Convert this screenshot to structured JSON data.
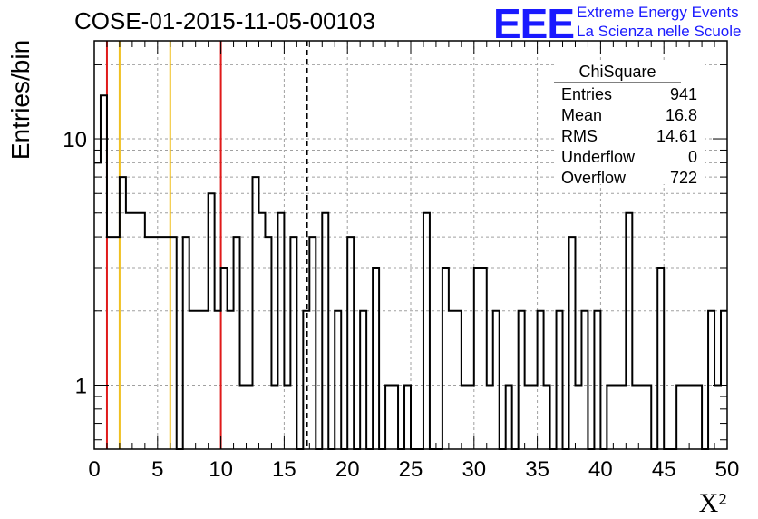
{
  "title": "COSE-01-2015-11-05-00103",
  "logo": {
    "acronym": "EEE",
    "line1": "Extreme Energy Events",
    "line2": "La Scienza nelle Scuole",
    "color": "#1a1aff"
  },
  "stats": {
    "name": "ChiSquare",
    "rows": [
      {
        "label": "Entries",
        "value": "941"
      },
      {
        "label": "Mean",
        "value": "16.8"
      },
      {
        "label": "RMS",
        "value": "14.61"
      },
      {
        "label": "Underflow",
        "value": "0"
      },
      {
        "label": "Overflow",
        "value": "722"
      }
    ]
  },
  "chart_data": {
    "type": "histogram",
    "xlabel": "X²",
    "ylabel": "Entries/bin",
    "xlim": [
      0,
      50
    ],
    "ylim": [
      0.55,
      25
    ],
    "yscale": "log",
    "grid": true,
    "bin_width": 0.5,
    "x_ticks": [
      "0",
      "5",
      "10",
      "15",
      "20",
      "25",
      "30",
      "35",
      "40",
      "45",
      "50"
    ],
    "y_ticks": [
      "1",
      "10"
    ],
    "bin_contents": [
      8,
      15,
      4,
      4,
      7,
      5,
      5,
      5,
      4,
      4,
      4,
      4,
      4,
      0,
      4,
      2,
      2,
      2,
      6,
      2,
      3,
      2,
      4,
      1,
      1,
      7,
      5,
      4,
      1,
      5,
      1,
      4,
      0,
      2,
      4,
      0,
      5,
      0,
      2,
      0,
      4,
      0,
      2,
      0,
      3,
      0,
      1,
      1,
      0,
      1,
      0,
      0,
      5,
      0,
      0,
      3,
      2,
      2,
      1,
      1,
      3,
      3,
      1,
      2,
      0,
      1,
      0,
      2,
      1,
      1,
      2,
      1,
      0,
      2,
      0,
      4,
      1,
      2,
      0,
      2,
      0,
      1,
      1,
      1,
      5,
      1,
      1,
      1,
      0,
      3,
      0,
      0,
      1,
      1,
      1,
      1,
      0,
      2,
      1,
      2
    ],
    "vertical_lines": [
      {
        "x": 1.0,
        "color": "#e01a1a",
        "style": "solid"
      },
      {
        "x": 2.0,
        "color": "#f0c020",
        "style": "solid"
      },
      {
        "x": 6.0,
        "color": "#f0c020",
        "style": "solid"
      },
      {
        "x": 10.0,
        "color": "#e01a1a",
        "style": "solid"
      },
      {
        "x": 16.8,
        "color": "#000000",
        "style": "dashed"
      }
    ]
  }
}
